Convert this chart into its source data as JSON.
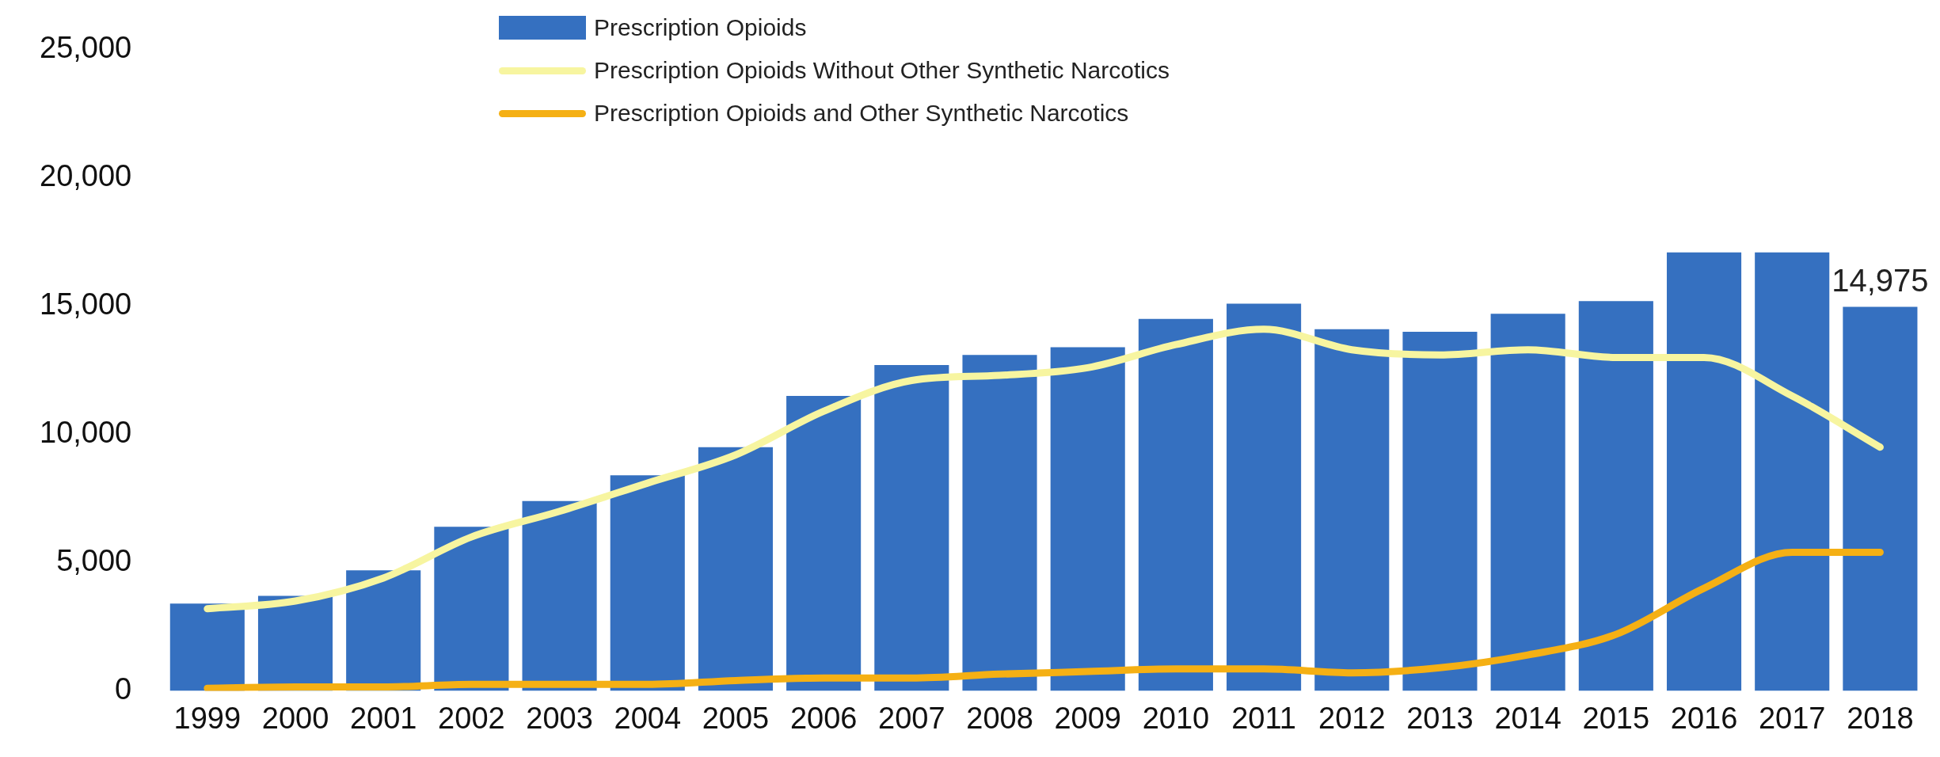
{
  "chart_data": {
    "type": "bar",
    "categories": [
      "1999",
      "2000",
      "2001",
      "2002",
      "2003",
      "2004",
      "2005",
      "2006",
      "2007",
      "2008",
      "2009",
      "2010",
      "2011",
      "2012",
      "2013",
      "2014",
      "2015",
      "2016",
      "2017",
      "2018"
    ],
    "series": [
      {
        "name": "Prescription Opioids",
        "color": "#3570c0",
        "values": [
          3400,
          3700,
          4700,
          6400,
          7400,
          8400,
          9500,
          11500,
          12700,
          13100,
          13400,
          14500,
          15100,
          14100,
          14000,
          14700,
          15200,
          17100,
          17100,
          14975
        ],
        "value_labels": [
          null,
          null,
          null,
          null,
          null,
          null,
          null,
          null,
          null,
          null,
          null,
          null,
          null,
          null,
          null,
          null,
          null,
          null,
          null,
          "14,975"
        ]
      },
      {
        "name": "Prescription Opioids Without Other Synthetic Narcotics",
        "type": "line",
        "color": "#f7f5a0",
        "values": [
          3200,
          3500,
          4400,
          6000,
          7000,
          8100,
          9200,
          10900,
          12100,
          12300,
          12600,
          13500,
          14100,
          13300,
          13100,
          13300,
          13000,
          13000,
          11500,
          9500
        ]
      },
      {
        "name": "Prescription Opioids and Other Synthetic Narcotics",
        "type": "line",
        "color": "#f5b014",
        "values": [
          100,
          150,
          150,
          250,
          250,
          250,
          400,
          500,
          500,
          650,
          750,
          850,
          850,
          700,
          900,
          1400,
          2200,
          4000,
          5400,
          5400
        ]
      }
    ],
    "ylim": [
      0,
      25000
    ],
    "yticks": [
      {
        "value": 0,
        "label": "0"
      },
      {
        "value": 5000,
        "label": "5,000"
      },
      {
        "value": 10000,
        "label": "10,000"
      },
      {
        "value": 15000,
        "label": "15,000"
      },
      {
        "value": 20000,
        "label": "20,000"
      },
      {
        "value": 25000,
        "label": "25,000"
      }
    ],
    "grid": false,
    "legend": "top",
    "marker": "none",
    "line_style": "solid"
  }
}
